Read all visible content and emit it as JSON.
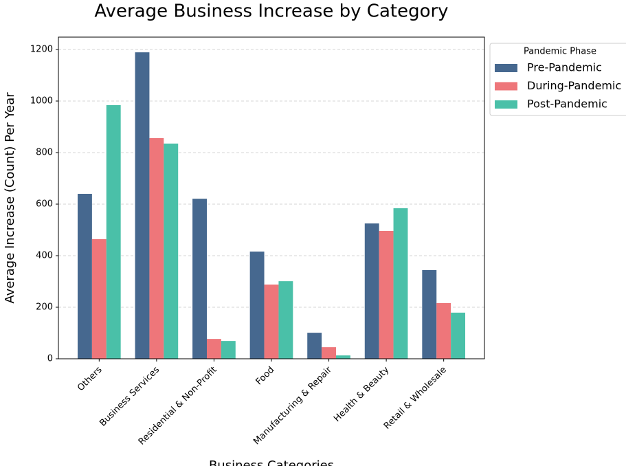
{
  "chart_data": {
    "type": "bar",
    "title": "Average Business Increase by Category",
    "x_label": "Business Categories",
    "y_label": "Average Increase (Count) Per Year",
    "categories": [
      "Others",
      "Business Services",
      "Residential & Non-Profit",
      "Food",
      "Manufacturing & Repair",
      "Health & Beauty",
      "Retail & Wholesale"
    ],
    "series": [
      {
        "name": "Pre-Pandemic",
        "color": "#46688f",
        "values": [
          640,
          1189,
          621,
          416,
          101,
          525,
          344
        ]
      },
      {
        "name": "During-Pandemic",
        "color": "#ee767a",
        "values": [
          464,
          856,
          77,
          288,
          45,
          496,
          216
        ]
      },
      {
        "name": "Post-Pandemic",
        "color": "#4ac0a8",
        "values": [
          984,
          835,
          69,
          301,
          13,
          584,
          179
        ]
      }
    ],
    "ylim": [
      0,
      1248
    ],
    "yticks": [
      0,
      200,
      400,
      600,
      800,
      1000,
      1200
    ],
    "grid": true,
    "legend_title": "Pandemic Phase",
    "legend": "outside-right"
  }
}
